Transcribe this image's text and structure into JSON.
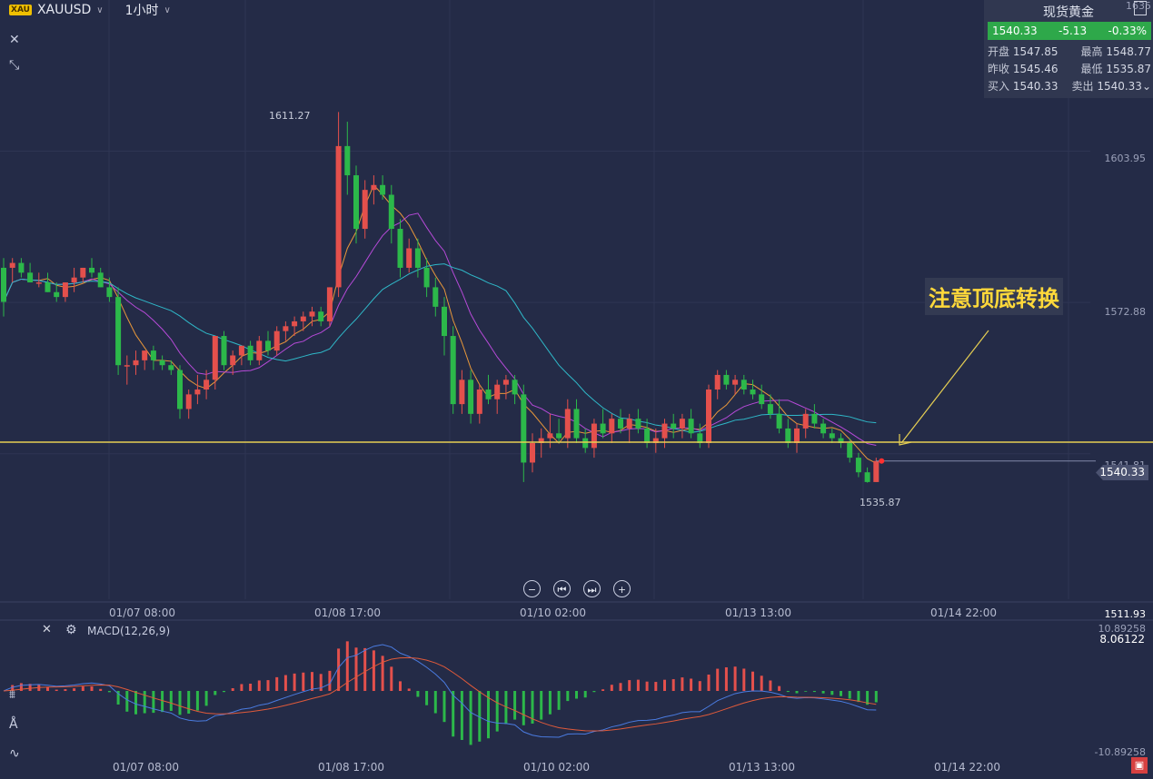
{
  "header": {
    "symbol_badge": "XAU",
    "symbol": "XAUUSD",
    "interval": "1小时"
  },
  "quote": {
    "title": "现货黄金",
    "last": "1540.33",
    "change": "-5.13",
    "change_pct": "-0.33%",
    "open_label": "开盘",
    "open": "1547.85",
    "high_label": "最高",
    "high": "1548.77",
    "prev_close_label": "昨收",
    "prev_close": "1545.46",
    "low_label": "最低",
    "low": "1535.87",
    "bid_label": "买入",
    "bid": "1540.33",
    "ask_label": "卖出",
    "ask": "1540.33"
  },
  "price_axis": {
    "top_label": "1635",
    "labels": [
      "1603.95",
      "1572.88",
      "1541.81"
    ],
    "current": "1540.33",
    "bottom": "1511.93"
  },
  "annotations": {
    "high_marker": "1611.27",
    "low_marker": "1535.87",
    "note": "注意顶底转换"
  },
  "time_axis": [
    "01/07 08:00",
    "01/08 17:00",
    "01/10 02:00",
    "01/13 13:00",
    "01/14 22:00"
  ],
  "macd": {
    "title": "MACD(12,26,9)",
    "axis_top": "10.89258",
    "axis_bottom": "-10.89258",
    "current": "8.06122"
  },
  "icons": {
    "close": "close-icon",
    "collapse": "collapse-icon",
    "gear": "gear-icon"
  },
  "colors": {
    "background": "#242b47",
    "up": "#e4504c",
    "down": "#2cb84a",
    "support_line": "#e6cf53",
    "ma_fast": "#e8973a",
    "ma_mid": "#b64ad8",
    "ma_slow": "#2fb8c8"
  },
  "chart_data": {
    "type": "candlestick",
    "title": "XAUUSD 1小时",
    "x": [
      "01/07 08:00",
      "01/08 17:00",
      "01/10 02:00",
      "01/13 13:00",
      "01/14 22:00"
    ],
    "candles": [
      [
        1580,
        1582,
        1570,
        1573
      ],
      [
        1580,
        1582,
        1577,
        1581
      ],
      [
        1581,
        1582,
        1578,
        1579
      ],
      [
        1579,
        1581,
        1577,
        1577
      ],
      [
        1577,
        1579,
        1576,
        1577
      ],
      [
        1577,
        1579,
        1575,
        1575
      ],
      [
        1575,
        1577,
        1573,
        1574
      ],
      [
        1574,
        1577,
        1573,
        1577
      ],
      [
        1577,
        1580,
        1575,
        1578
      ],
      [
        1578,
        1580,
        1577,
        1580
      ],
      [
        1580,
        1582,
        1578,
        1579
      ],
      [
        1579,
        1580,
        1576,
        1576
      ],
      [
        1576,
        1578,
        1573,
        1574
      ],
      [
        1574,
        1576,
        1558,
        1560
      ],
      [
        1560,
        1562,
        1556,
        1560
      ],
      [
        1560,
        1563,
        1558,
        1561
      ],
      [
        1561,
        1563,
        1559,
        1563
      ],
      [
        1563,
        1564,
        1559,
        1561
      ],
      [
        1561,
        1562,
        1559,
        1560
      ],
      [
        1560,
        1561,
        1558,
        1559
      ],
      [
        1559,
        1560,
        1549,
        1551
      ],
      [
        1551,
        1555,
        1549,
        1554
      ],
      [
        1554,
        1558,
        1552,
        1555
      ],
      [
        1555,
        1559,
        1553,
        1557
      ],
      [
        1557,
        1566,
        1555,
        1566
      ],
      [
        1566,
        1567,
        1559,
        1560
      ],
      [
        1560,
        1563,
        1558,
        1562
      ],
      [
        1562,
        1564,
        1560,
        1564
      ],
      [
        1564,
        1565,
        1560,
        1561
      ],
      [
        1561,
        1566,
        1560,
        1565
      ],
      [
        1565,
        1567,
        1562,
        1563
      ],
      [
        1563,
        1568,
        1562,
        1567
      ],
      [
        1567,
        1569,
        1565,
        1568
      ],
      [
        1568,
        1570,
        1566,
        1569
      ],
      [
        1569,
        1571,
        1567,
        1570
      ],
      [
        1570,
        1572,
        1568,
        1571
      ],
      [
        1571,
        1572,
        1568,
        1569
      ],
      [
        1569,
        1576,
        1568,
        1576
      ],
      [
        1576,
        1612,
        1574,
        1605
      ],
      [
        1605,
        1610,
        1595,
        1599
      ],
      [
        1599,
        1601,
        1585,
        1588
      ],
      [
        1588,
        1598,
        1586,
        1596
      ],
      [
        1596,
        1599,
        1593,
        1597
      ],
      [
        1597,
        1599,
        1594,
        1595
      ],
      [
        1595,
        1597,
        1585,
        1588
      ],
      [
        1588,
        1590,
        1578,
        1580
      ],
      [
        1580,
        1586,
        1579,
        1584
      ],
      [
        1584,
        1586,
        1578,
        1580
      ],
      [
        1580,
        1582,
        1574,
        1576
      ],
      [
        1576,
        1578,
        1570,
        1572
      ],
      [
        1572,
        1574,
        1562,
        1566
      ],
      [
        1566,
        1568,
        1550,
        1552
      ],
      [
        1552,
        1559,
        1550,
        1557
      ],
      [
        1557,
        1559,
        1548,
        1550
      ],
      [
        1550,
        1556,
        1548,
        1555
      ],
      [
        1555,
        1558,
        1552,
        1553
      ],
      [
        1553,
        1557,
        1550,
        1556
      ],
      [
        1556,
        1558,
        1553,
        1557
      ],
      [
        1557,
        1558,
        1552,
        1554
      ],
      [
        1554,
        1556,
        1536,
        1540
      ],
      [
        1540,
        1546,
        1538,
        1544
      ],
      [
        1544,
        1547,
        1541,
        1545
      ],
      [
        1545,
        1550,
        1543,
        1546
      ],
      [
        1546,
        1549,
        1544,
        1545
      ],
      [
        1545,
        1553,
        1543,
        1551
      ],
      [
        1551,
        1553,
        1544,
        1545
      ],
      [
        1545,
        1547,
        1542,
        1543
      ],
      [
        1543,
        1549,
        1541,
        1548
      ],
      [
        1548,
        1551,
        1545,
        1546
      ],
      [
        1546,
        1550,
        1544,
        1549
      ],
      [
        1549,
        1551,
        1546,
        1547
      ],
      [
        1547,
        1550,
        1544,
        1549
      ],
      [
        1549,
        1551,
        1546,
        1547
      ],
      [
        1547,
        1549,
        1543,
        1544
      ],
      [
        1544,
        1547,
        1542,
        1545
      ],
      [
        1545,
        1549,
        1543,
        1548
      ],
      [
        1548,
        1550,
        1545,
        1547
      ],
      [
        1547,
        1550,
        1545,
        1549
      ],
      [
        1549,
        1551,
        1545,
        1546
      ],
      [
        1546,
        1548,
        1543,
        1544
      ],
      [
        1544,
        1556,
        1543,
        1555
      ],
      [
        1555,
        1559,
        1553,
        1558
      ],
      [
        1558,
        1559,
        1555,
        1556
      ],
      [
        1556,
        1558,
        1554,
        1557
      ],
      [
        1557,
        1558,
        1554,
        1555
      ],
      [
        1555,
        1557,
        1553,
        1554
      ],
      [
        1554,
        1556,
        1551,
        1552
      ],
      [
        1552,
        1554,
        1549,
        1550
      ],
      [
        1550,
        1553,
        1546,
        1547
      ],
      [
        1547,
        1549,
        1543,
        1544
      ],
      [
        1544,
        1548,
        1542,
        1547
      ],
      [
        1547,
        1551,
        1545,
        1550
      ],
      [
        1550,
        1552,
        1547,
        1548
      ],
      [
        1548,
        1549,
        1545,
        1546
      ],
      [
        1546,
        1547,
        1544,
        1545
      ],
      [
        1545,
        1546,
        1543,
        1544
      ],
      [
        1544,
        1545,
        1540,
        1541
      ],
      [
        1541,
        1542,
        1537,
        1538
      ],
      [
        1538,
        1539,
        1535.87,
        1536
      ],
      [
        1536,
        1541,
        1536,
        1540.33
      ]
    ],
    "ylim": [
      1511.93,
      1635
    ],
    "support_level": 1544.2,
    "macd_ylim": [
      -10.89258,
      10.89258
    ]
  }
}
